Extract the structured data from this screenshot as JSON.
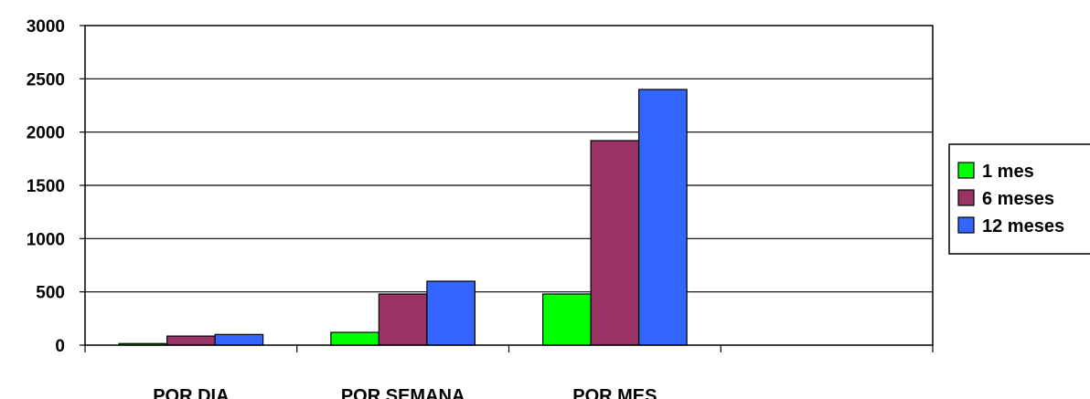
{
  "chart_data": {
    "type": "bar",
    "categories": [
      "POR DIA",
      "POR SEMANA",
      "POR MES",
      ""
    ],
    "series": [
      {
        "name": "1 mes",
        "color": "#00FF00",
        "values": [
          15,
          120,
          480,
          null
        ]
      },
      {
        "name": "6 meses",
        "color": "#993366",
        "values": [
          85,
          480,
          1920,
          null
        ]
      },
      {
        "name": "12 meses",
        "color": "#3366FF",
        "values": [
          100,
          600,
          2400,
          null
        ]
      }
    ],
    "ylim": [
      0,
      3000
    ],
    "yticks": [
      0,
      500,
      1000,
      1500,
      2000,
      2500,
      3000
    ],
    "grid": true,
    "legend_position": "right"
  }
}
